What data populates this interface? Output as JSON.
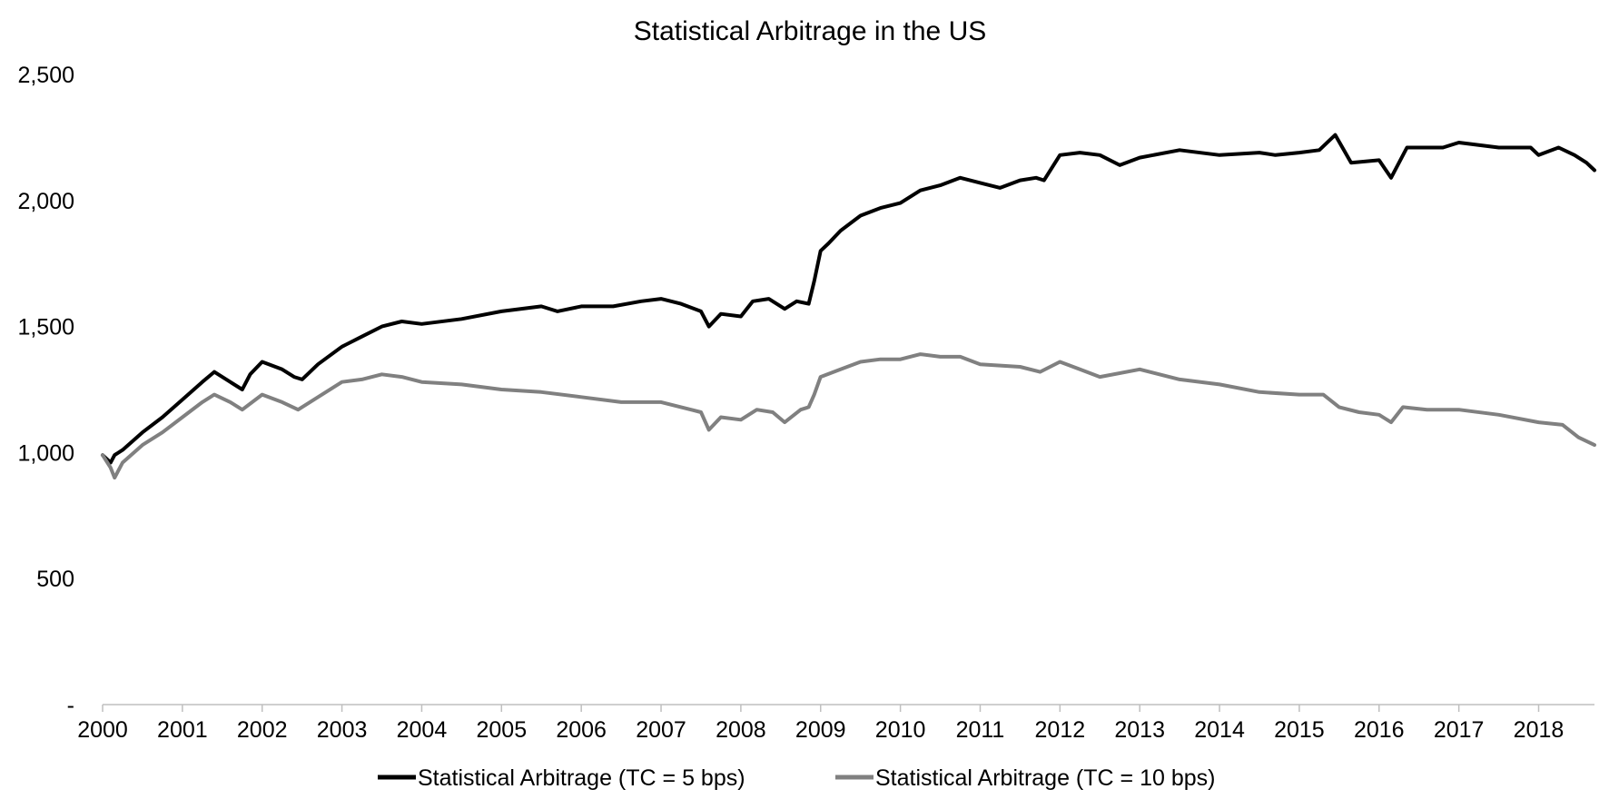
{
  "chart_data": {
    "type": "line",
    "title": "Statistical Arbitrage in the US",
    "xlabel": "",
    "ylabel": "",
    "ylim": [
      0,
      2500
    ],
    "xlim": [
      2000.0,
      2018.7
    ],
    "y_ticks": [
      {
        "value": 0,
        "label": "-"
      },
      {
        "value": 500,
        "label": "500"
      },
      {
        "value": 1000,
        "label": "1,000"
      },
      {
        "value": 1500,
        "label": "1,500"
      },
      {
        "value": 2000,
        "label": "2,000"
      },
      {
        "value": 2500,
        "label": "2,500"
      }
    ],
    "x_ticks": [
      {
        "value": 2000,
        "label": "2000"
      },
      {
        "value": 2001,
        "label": "2001"
      },
      {
        "value": 2002,
        "label": "2002"
      },
      {
        "value": 2003,
        "label": "2003"
      },
      {
        "value": 2004,
        "label": "2004"
      },
      {
        "value": 2005,
        "label": "2005"
      },
      {
        "value": 2006,
        "label": "2006"
      },
      {
        "value": 2007,
        "label": "2007"
      },
      {
        "value": 2008,
        "label": "2008"
      },
      {
        "value": 2009,
        "label": "2009"
      },
      {
        "value": 2010,
        "label": "2010"
      },
      {
        "value": 2011,
        "label": "2011"
      },
      {
        "value": 2012,
        "label": "2012"
      },
      {
        "value": 2013,
        "label": "2013"
      },
      {
        "value": 2014,
        "label": "2014"
      },
      {
        "value": 2015,
        "label": "2015"
      },
      {
        "value": 2016,
        "label": "2016"
      },
      {
        "value": 2017,
        "label": "2017"
      },
      {
        "value": 2018,
        "label": "2018"
      }
    ],
    "grid": false,
    "legend_position": "bottom",
    "series": [
      {
        "name": "Statistical Arbitrage (TC = 5 bps)",
        "color": "#000000",
        "x": [
          2000.0,
          2000.1,
          2000.15,
          2000.25,
          2000.5,
          2000.75,
          2001.0,
          2001.25,
          2001.4,
          2001.6,
          2001.75,
          2001.85,
          2002.0,
          2002.25,
          2002.4,
          2002.5,
          2002.7,
          2003.0,
          2003.25,
          2003.5,
          2003.75,
          2004.0,
          2004.5,
          2005.0,
          2005.5,
          2005.7,
          2006.0,
          2006.4,
          2006.75,
          2007.0,
          2007.25,
          2007.5,
          2007.6,
          2007.75,
          2008.0,
          2008.15,
          2008.35,
          2008.55,
          2008.7,
          2008.85,
          2008.92,
          2009.0,
          2009.1,
          2009.25,
          2009.5,
          2009.75,
          2010.0,
          2010.25,
          2010.5,
          2010.75,
          2011.0,
          2011.25,
          2011.5,
          2011.7,
          2011.8,
          2012.0,
          2012.25,
          2012.5,
          2012.75,
          2013.0,
          2013.5,
          2014.0,
          2014.5,
          2014.7,
          2015.0,
          2015.25,
          2015.45,
          2015.65,
          2016.0,
          2016.15,
          2016.35,
          2016.6,
          2016.8,
          2017.0,
          2017.5,
          2017.9,
          2018.0,
          2018.25,
          2018.45,
          2018.6,
          2018.7
        ],
        "values": [
          990,
          960,
          990,
          1010,
          1080,
          1140,
          1210,
          1280,
          1320,
          1280,
          1250,
          1310,
          1360,
          1330,
          1300,
          1290,
          1350,
          1420,
          1460,
          1500,
          1520,
          1510,
          1530,
          1560,
          1580,
          1560,
          1580,
          1580,
          1600,
          1610,
          1590,
          1560,
          1500,
          1550,
          1540,
          1600,
          1610,
          1570,
          1600,
          1590,
          1680,
          1800,
          1830,
          1880,
          1940,
          1970,
          1990,
          2040,
          2060,
          2090,
          2070,
          2050,
          2080,
          2090,
          2080,
          2180,
          2190,
          2180,
          2140,
          2170,
          2200,
          2180,
          2190,
          2180,
          2190,
          2200,
          2260,
          2150,
          2160,
          2090,
          2210,
          2210,
          2210,
          2230,
          2210,
          2210,
          2180,
          2210,
          2180,
          2150,
          2120
        ]
      },
      {
        "name": "Statistical Arbitrage (TC = 10 bps)",
        "color": "#808080",
        "x": [
          2000.0,
          2000.1,
          2000.15,
          2000.25,
          2000.5,
          2000.75,
          2001.0,
          2001.25,
          2001.4,
          2001.6,
          2001.75,
          2002.0,
          2002.25,
          2002.45,
          2002.75,
          2003.0,
          2003.25,
          2003.5,
          2003.75,
          2004.0,
          2004.5,
          2005.0,
          2005.5,
          2006.0,
          2006.5,
          2007.0,
          2007.5,
          2007.6,
          2007.75,
          2008.0,
          2008.2,
          2008.4,
          2008.55,
          2008.75,
          2008.85,
          2008.92,
          2009.0,
          2009.25,
          2009.5,
          2009.75,
          2010.0,
          2010.25,
          2010.5,
          2010.75,
          2011.0,
          2011.5,
          2011.75,
          2012.0,
          2012.25,
          2012.5,
          2013.0,
          2013.5,
          2014.0,
          2014.5,
          2015.0,
          2015.3,
          2015.5,
          2015.75,
          2016.0,
          2016.15,
          2016.3,
          2016.6,
          2017.0,
          2017.5,
          2018.0,
          2018.3,
          2018.5,
          2018.7
        ],
        "values": [
          990,
          940,
          900,
          960,
          1030,
          1080,
          1140,
          1200,
          1230,
          1200,
          1170,
          1230,
          1200,
          1170,
          1230,
          1280,
          1290,
          1310,
          1300,
          1280,
          1270,
          1250,
          1240,
          1220,
          1200,
          1200,
          1160,
          1090,
          1140,
          1130,
          1170,
          1160,
          1120,
          1170,
          1180,
          1230,
          1300,
          1330,
          1360,
          1370,
          1370,
          1390,
          1380,
          1380,
          1350,
          1340,
          1320,
          1360,
          1330,
          1300,
          1330,
          1290,
          1270,
          1240,
          1230,
          1230,
          1180,
          1160,
          1150,
          1120,
          1180,
          1170,
          1170,
          1150,
          1120,
          1110,
          1060,
          1030
        ]
      }
    ]
  }
}
